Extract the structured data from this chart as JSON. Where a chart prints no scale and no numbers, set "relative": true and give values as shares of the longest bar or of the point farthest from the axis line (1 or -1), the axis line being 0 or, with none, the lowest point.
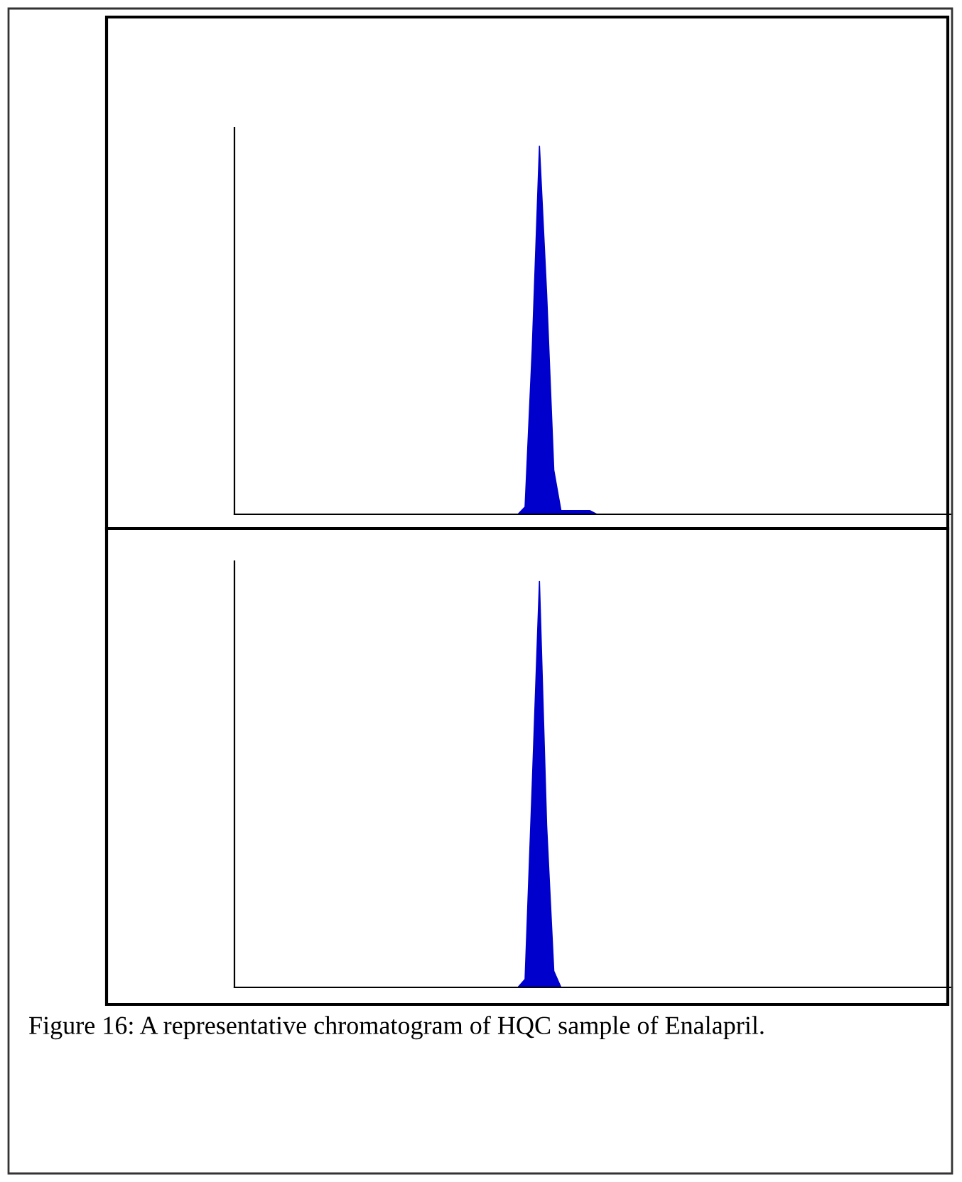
{
  "chart_data": [
    {
      "type": "area",
      "relative": true,
      "categories": [
        null,
        null,
        null,
        null,
        null,
        null,
        null,
        null,
        null,
        null,
        null,
        null,
        null,
        null,
        null,
        null,
        null,
        null,
        null,
        null,
        null,
        null,
        null,
        null,
        null,
        null,
        null,
        null,
        null,
        null,
        null,
        null,
        null,
        null,
        null,
        null,
        null,
        null,
        null,
        null,
        null,
        null,
        null,
        null,
        null,
        null,
        null,
        null,
        null,
        null,
        null,
        null,
        null,
        null,
        null,
        null,
        null,
        null,
        null,
        null,
        null,
        null,
        null,
        null,
        null,
        null,
        null,
        null,
        null,
        null,
        null,
        null,
        null,
        null,
        null,
        null,
        null,
        null,
        null,
        null,
        null,
        null,
        null,
        null,
        null,
        null,
        null,
        null,
        null,
        null,
        null,
        null,
        null,
        null,
        null,
        null,
        null,
        null,
        null,
        null
      ],
      "series": [
        {
          "color": "#0000cc",
          "values": [
            0,
            0,
            0,
            0,
            0,
            0,
            0,
            0,
            0,
            0,
            0,
            0,
            0,
            0,
            0,
            0,
            0,
            0,
            0,
            0,
            0,
            0,
            0,
            0,
            0,
            0,
            0,
            0,
            0,
            0,
            0,
            0,
            0,
            0,
            0,
            0,
            0,
            0,
            0,
            0,
            0.02,
            0.45,
            1,
            0.6,
            0.12,
            0.01,
            0.01,
            0.01,
            0.01,
            0.01,
            0,
            0,
            0,
            0,
            0,
            0,
            0,
            0,
            0,
            0,
            0,
            0,
            0,
            0,
            0,
            0,
            0,
            0,
            0,
            0,
            0,
            0,
            0,
            0,
            0,
            0,
            0,
            0,
            0,
            0,
            0,
            0,
            0,
            0,
            0,
            0,
            0,
            0,
            0,
            0,
            0,
            0,
            0,
            0,
            0,
            0,
            0,
            0,
            0,
            0
          ]
        }
      ]
    },
    {
      "type": "area",
      "relative": true,
      "categories": [
        null,
        null,
        null,
        null,
        null,
        null,
        null,
        null,
        null,
        null,
        null,
        null,
        null,
        null,
        null,
        null,
        null,
        null,
        null,
        null,
        null,
        null,
        null,
        null,
        null,
        null,
        null,
        null,
        null,
        null,
        null,
        null,
        null,
        null,
        null,
        null,
        null,
        null,
        null,
        null,
        null,
        null,
        null,
        null,
        null,
        null,
        null,
        null,
        null,
        null,
        null,
        null,
        null,
        null,
        null,
        null,
        null,
        null,
        null,
        null,
        null,
        null,
        null,
        null,
        null,
        null,
        null,
        null,
        null,
        null,
        null,
        null,
        null,
        null,
        null,
        null,
        null,
        null,
        null,
        null,
        null,
        null,
        null,
        null,
        null,
        null,
        null,
        null,
        null,
        null,
        null,
        null,
        null,
        null,
        null,
        null,
        null,
        null,
        null,
        null
      ],
      "series": [
        {
          "color": "#0000cc",
          "values": [
            0,
            0,
            0,
            0,
            0,
            0,
            0,
            0,
            0,
            0,
            0,
            0,
            0,
            0,
            0,
            0,
            0,
            0,
            0,
            0,
            0,
            0,
            0,
            0,
            0,
            0,
            0,
            0,
            0,
            0,
            0,
            0,
            0,
            0,
            0,
            0,
            0,
            0,
            0,
            0,
            0.02,
            0.5,
            1,
            0.4,
            0.04,
            0,
            0,
            0,
            0,
            0,
            0,
            0,
            0,
            0,
            0,
            0,
            0,
            0,
            0,
            0,
            0,
            0,
            0,
            0,
            0,
            0,
            0,
            0,
            0,
            0,
            0,
            0,
            0,
            0,
            0,
            0,
            0,
            0,
            0,
            0,
            0,
            0,
            0,
            0,
            0,
            0,
            0,
            0,
            0,
            0,
            0,
            0,
            0,
            0,
            0,
            0,
            0,
            0,
            0,
            0
          ]
        }
      ],
      "annotations": [
        "Figure 16: A representative chromatogram of HQC sample of Enalapril."
      ]
    }
  ]
}
